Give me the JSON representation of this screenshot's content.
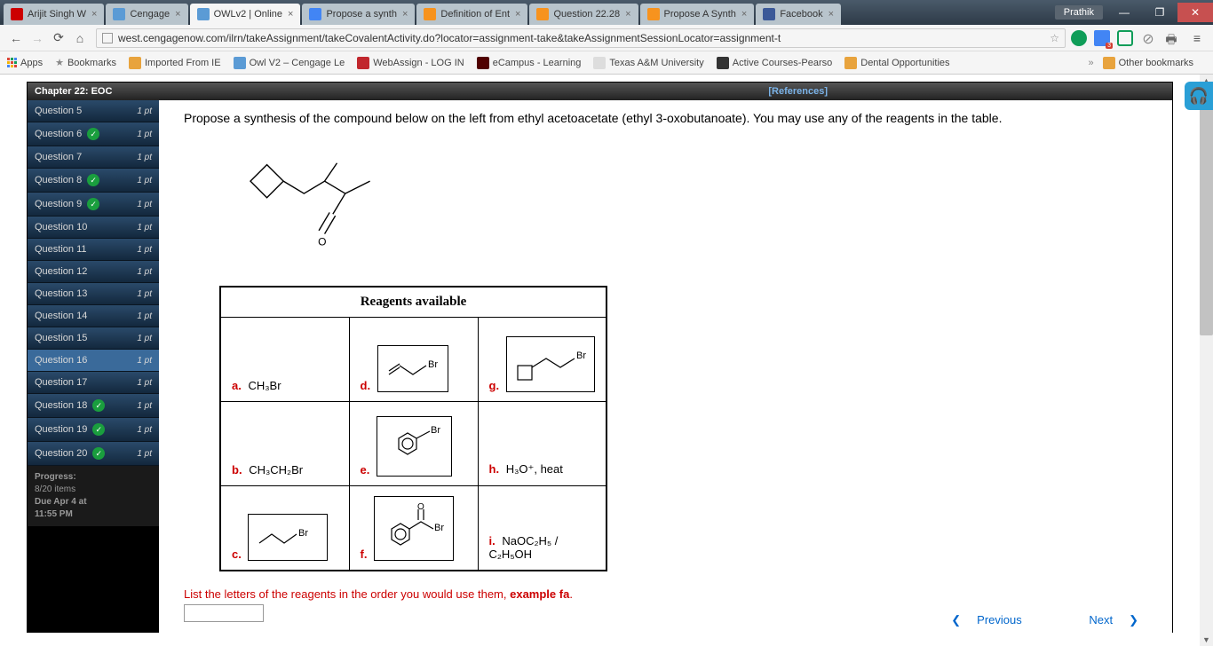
{
  "browser": {
    "user": "Prathik",
    "tabs": [
      {
        "label": "Arijit Singh W",
        "favicon": "#cc0000"
      },
      {
        "label": "Cengage",
        "favicon": "#5b9bd5"
      },
      {
        "label": "OWLv2 | Online",
        "favicon": "#5b9bd5",
        "active": true
      },
      {
        "label": "Propose a synth",
        "favicon": "#4285f4"
      },
      {
        "label": "Definition of Ent",
        "favicon": "#f7931e"
      },
      {
        "label": "Question 22.28",
        "favicon": "#f7931e"
      },
      {
        "label": "Propose A Synth",
        "favicon": "#f7931e"
      },
      {
        "label": "Facebook",
        "favicon": "#3b5998"
      }
    ],
    "url": "west.cengagenow.com/ilrn/takeAssignment/takeCovalentActivity.do?locator=assignment-take&takeAssignmentSessionLocator=assignment-t",
    "bookmarks": [
      {
        "label": "Apps",
        "color": "#db4437"
      },
      {
        "label": "Bookmarks",
        "color": "#888"
      },
      {
        "label": "Imported From IE",
        "color": "#e8a33d"
      },
      {
        "label": "Owl V2 – Cengage Le",
        "color": "#5b9bd5"
      },
      {
        "label": "WebAssign - LOG IN",
        "color": "#c1272d"
      },
      {
        "label": "eCampus - Learning",
        "color": "#500000"
      },
      {
        "label": "Texas A&M University",
        "color": "#ddd"
      },
      {
        "label": "Active Courses-Pearso",
        "color": "#333"
      },
      {
        "label": "Dental Opportunities",
        "color": "#e8a33d"
      }
    ],
    "other_bookmarks": "Other bookmarks"
  },
  "chapter": "Chapter 22: EOC",
  "references": "[References]",
  "questions": [
    {
      "n": "Question 5",
      "pts": "1 pt"
    },
    {
      "n": "Question 6",
      "pts": "1 pt",
      "done": true
    },
    {
      "n": "Question 7",
      "pts": "1 pt"
    },
    {
      "n": "Question 8",
      "pts": "1 pt",
      "done": true
    },
    {
      "n": "Question 9",
      "pts": "1 pt",
      "done": true
    },
    {
      "n": "Question 10",
      "pts": "1 pt"
    },
    {
      "n": "Question 11",
      "pts": "1 pt"
    },
    {
      "n": "Question 12",
      "pts": "1 pt"
    },
    {
      "n": "Question 13",
      "pts": "1 pt"
    },
    {
      "n": "Question 14",
      "pts": "1 pt"
    },
    {
      "n": "Question 15",
      "pts": "1 pt"
    },
    {
      "n": "Question 16",
      "pts": "1 pt",
      "active": true
    },
    {
      "n": "Question 17",
      "pts": "1 pt"
    },
    {
      "n": "Question 18",
      "pts": "1 pt",
      "done": true
    },
    {
      "n": "Question 19",
      "pts": "1 pt",
      "done": true
    },
    {
      "n": "Question 20",
      "pts": "1 pt",
      "done": true
    }
  ],
  "progress": {
    "l1": "Progress:",
    "l2": "8/20 items",
    "l3": "Due Apr 4 at",
    "l4": "11:55 PM"
  },
  "prompt": "Propose a synthesis of the compound below on the left from ethyl acetoacetate (ethyl 3-oxobutanoate). You may use any of the reagents in the table.",
  "reagents_title": "Reagents available",
  "reagents": {
    "a": "CH₃Br",
    "b": "CH₃CH₂Br",
    "h": "H₃O⁺, heat",
    "i": "NaOC₂H₅ / C₂H₅OH"
  },
  "instruction_pre": "List the letters of the reagents in the order you would use them, ",
  "instruction_bold": "example fa",
  "nav": {
    "prev": "Previous",
    "next": "Next"
  }
}
